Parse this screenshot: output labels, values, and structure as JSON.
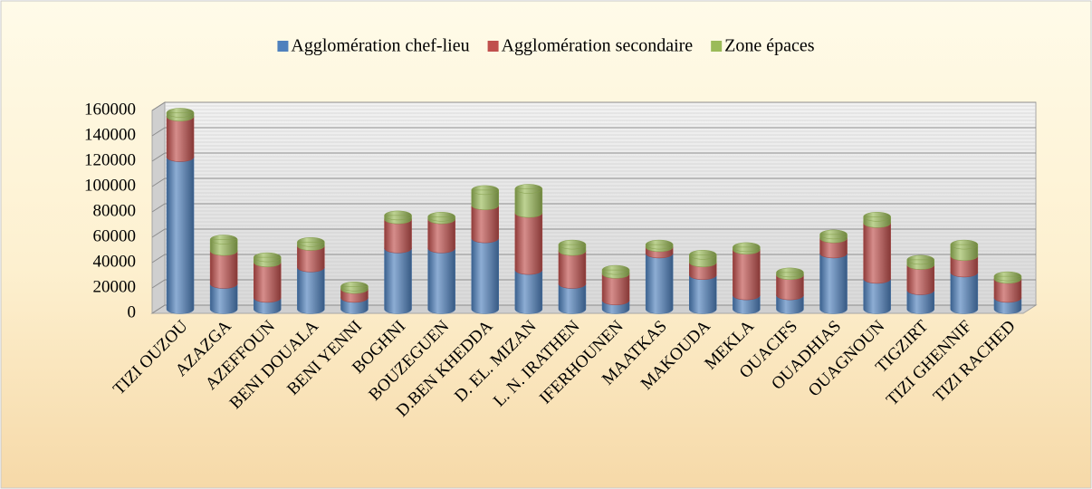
{
  "chart_data": {
    "type": "stacked-bar",
    "categories": [
      "TIZI OUZOU",
      "AZAZGA",
      "AZEFFOUN",
      "BENI DOUALA",
      "BENI YENNI",
      "BOGHNI",
      "BOUZEGUEN",
      "D.BEN KHEDDA",
      "D. EL. MIZAN",
      "L. N. IRATHEN",
      "IFERHOUNEN",
      "MAATKAS",
      "MAKOUDA",
      "MEKLA",
      "OUACIFS",
      "OUADHIAS",
      "OUAGNOUN",
      "TIGZIRT",
      "TIZI GHENNIF",
      "TIZI RACHED"
    ],
    "series": [
      {
        "name": "Agglomération chef-lieu",
        "color": "#4f81bd",
        "values": [
          120000,
          20000,
          9000,
          33000,
          9000,
          48000,
          48000,
          56000,
          31000,
          20000,
          7000,
          44000,
          27000,
          11000,
          11000,
          44000,
          24000,
          15000,
          29000,
          9000
        ]
      },
      {
        "name": "Agglomération secondaire",
        "color": "#c0504d",
        "values": [
          32000,
          26000,
          28000,
          17000,
          7000,
          23000,
          23000,
          26000,
          45000,
          26000,
          21000,
          5000,
          10000,
          36000,
          16000,
          12000,
          44000,
          20000,
          13000,
          15000
        ]
      },
      {
        "name": "Zone épaces",
        "color": "#9bbb59",
        "values": [
          3000,
          9000,
          4000,
          3000,
          2000,
          3000,
          2000,
          12000,
          19000,
          5000,
          3000,
          2000,
          6000,
          2000,
          2000,
          3000,
          5000,
          4000,
          9000,
          2000
        ]
      }
    ],
    "ylim": [
      0,
      160000
    ],
    "yticks": [
      0,
      20000,
      40000,
      60000,
      80000,
      100000,
      120000,
      140000,
      160000
    ],
    "grid": true,
    "legend": "top"
  }
}
